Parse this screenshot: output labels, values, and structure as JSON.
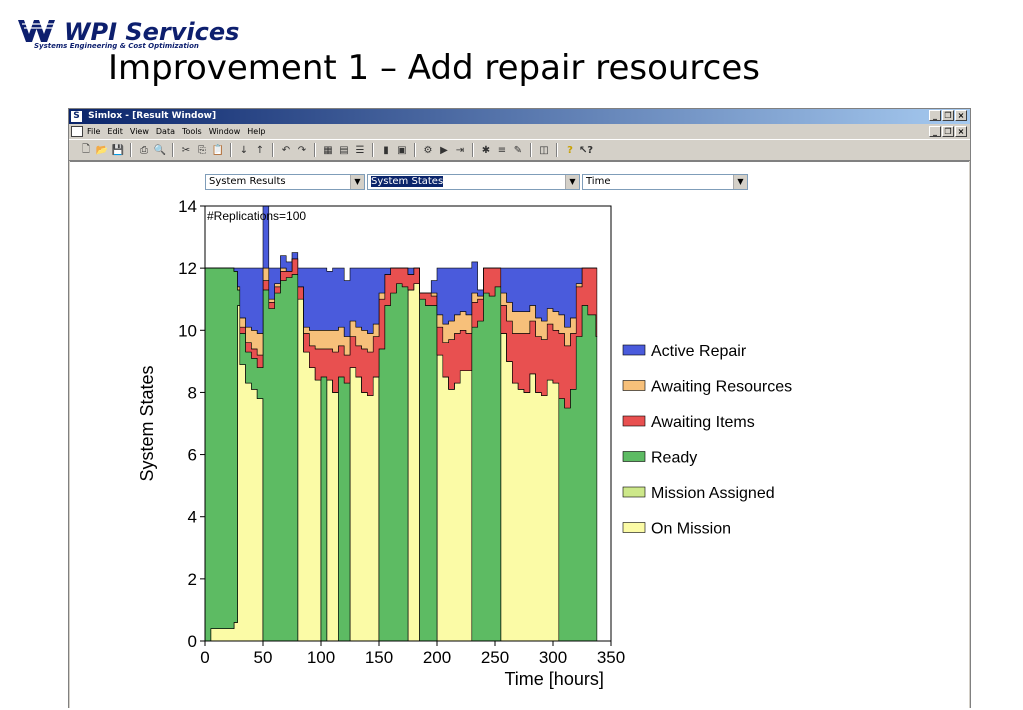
{
  "logo": {
    "name": "WPI Services",
    "tagline": "Systems Engineering & Cost Optimization"
  },
  "slide": {
    "title": "Improvement 1 – Add repair resources"
  },
  "window": {
    "title": "Simlox - [Result Window]",
    "controls": [
      "_",
      "Ő",
      "x"
    ]
  },
  "menu": {
    "items": [
      "File",
      "Edit",
      "View",
      "Data",
      "Tools",
      "Window",
      "Help"
    ]
  },
  "toolbar": {
    "icons": [
      "new-file-icon",
      "open-folder-icon",
      "save-icon",
      "print-icon",
      "print-preview-icon",
      "cut-icon",
      "copy-icon",
      "paste-icon",
      "sort-ascending-icon",
      "sort-descending-icon",
      "undo-icon",
      "redo-icon",
      "table-icon",
      "chart-icon",
      "grid-icon",
      "bar-icon",
      "report-icon",
      "simulate-icon",
      "run-icon",
      "step-icon",
      "settings-icon",
      "list-icon",
      "tool-icon",
      "window-icon",
      "help-icon",
      "context-help-icon"
    ]
  },
  "selectors": {
    "results": {
      "value": "System Results"
    },
    "states": {
      "value": "System States"
    },
    "axis": {
      "value": "Time"
    }
  },
  "colors": {
    "active_repair": "#4a5bdc",
    "awaiting_resources": "#f7c07a",
    "awaiting_items": "#e85050",
    "ready": "#5dbb63",
    "mission_assigned": "#cde88a",
    "on_mission": "#fbfba6"
  },
  "chart_data": {
    "type": "area",
    "annotation": "#Replications=100",
    "xlabel": "Time [hours]",
    "ylabel": "System States",
    "xlim": [
      0,
      350
    ],
    "ylim": [
      0,
      14
    ],
    "xticks": [
      0,
      50,
      100,
      150,
      200,
      250,
      300,
      350
    ],
    "yticks": [
      0,
      2,
      4,
      6,
      8,
      10,
      12,
      14
    ],
    "legend_position": "right",
    "legend": [
      "Active Repair",
      "Awaiting Resources",
      "Awaiting Items",
      "Ready",
      "Mission Assigned",
      "On Mission"
    ],
    "x": [
      0,
      5,
      10,
      15,
      20,
      25,
      28,
      30,
      35,
      40,
      45,
      50,
      55,
      60,
      65,
      70,
      75,
      80,
      85,
      90,
      95,
      100,
      105,
      110,
      115,
      120,
      125,
      130,
      135,
      140,
      145,
      150,
      155,
      160,
      165,
      170,
      175,
      180,
      185,
      190,
      195,
      200,
      205,
      210,
      215,
      220,
      225,
      230,
      235,
      240,
      245,
      250,
      255,
      260,
      265,
      270,
      275,
      280,
      285,
      290,
      295,
      300,
      305,
      310,
      315,
      320,
      325,
      330,
      337
    ],
    "series": [
      {
        "name": "Active Repair",
        "values": [
          0,
          0,
          0,
          0,
          0,
          0.1,
          0.6,
          1.6,
          1.9,
          2.0,
          2.1,
          2.0,
          1.0,
          0.5,
          0.4,
          0.3,
          0.2,
          0.6,
          1.9,
          2.0,
          2.0,
          2.0,
          1.9,
          2.0,
          1.9,
          1.8,
          1.7,
          1.9,
          2.0,
          2.1,
          1.8,
          0.8,
          0.2,
          0,
          0,
          0,
          0.2,
          0,
          0,
          0,
          0.4,
          1.5,
          1.8,
          1.7,
          1.5,
          1.4,
          1.5,
          1.0,
          0.2,
          0,
          0,
          0,
          0.8,
          1.1,
          1.4,
          1.4,
          1.4,
          1.2,
          1.6,
          1.7,
          1.3,
          1.4,
          1.5,
          1.9,
          1.6,
          0.5,
          0,
          0,
          0
        ]
      },
      {
        "name": "Awaiting Resources",
        "values": [
          0,
          0,
          0,
          0,
          0,
          0,
          0.1,
          0.3,
          0.5,
          0.6,
          0.7,
          0.4,
          0.1,
          0.1,
          0.1,
          0,
          0,
          0,
          0.2,
          0.5,
          0.6,
          0.6,
          0.6,
          0.7,
          0.6,
          0.6,
          0.5,
          0.6,
          0.6,
          0.6,
          0.4,
          0.2,
          0,
          0,
          0,
          0,
          0,
          0,
          0,
          0,
          0.1,
          0.4,
          0.6,
          0.6,
          0.6,
          0.6,
          0.6,
          0.3,
          0.1,
          0,
          0,
          0,
          0.4,
          0.6,
          0.7,
          0.7,
          0.7,
          0.5,
          0.6,
          0.6,
          0.5,
          0.6,
          0.6,
          0.6,
          0.5,
          0.1,
          0,
          0,
          0
        ]
      },
      {
        "name": "Awaiting Items",
        "values": [
          0,
          0,
          0,
          0,
          0,
          0,
          0,
          0.2,
          0.3,
          0.3,
          0.4,
          0.3,
          0.2,
          0.2,
          0.3,
          0.2,
          0.5,
          0.4,
          0.6,
          0.7,
          1.0,
          0.9,
          1.0,
          1.3,
          1.0,
          0.9,
          1.0,
          1.0,
          1.4,
          1.4,
          1.3,
          1.6,
          1.0,
          0.8,
          0.5,
          0.6,
          0.5,
          0.5,
          0.2,
          0.4,
          0.3,
          0.9,
          1.1,
          1.6,
          1.6,
          1.3,
          1.2,
          0.8,
          0.7,
          0.8,
          0.9,
          0.6,
          0.9,
          1.3,
          1.6,
          1.8,
          1.9,
          1.7,
          1.8,
          1.8,
          1.8,
          1.7,
          2.1,
          2.0,
          1.8,
          1.6,
          1.2,
          1.5,
          2.2
        ]
      },
      {
        "name": "Ready",
        "values": [
          12,
          11.6,
          11.6,
          11.6,
          11.6,
          11.3,
          0.5,
          1.0,
          1.0,
          1.0,
          1.0,
          11.3,
          10.7,
          11.2,
          11.6,
          11.7,
          11.8,
          0,
          0,
          0,
          0,
          8.5,
          0,
          0,
          8.5,
          8.3,
          0,
          0,
          0,
          0,
          0,
          9.4,
          10.8,
          11.2,
          11.5,
          11.4,
          0,
          0,
          11.0,
          10.8,
          10.8,
          0,
          0,
          0,
          0,
          0,
          0,
          10.1,
          10.3,
          11.2,
          11.1,
          11.4,
          0,
          0,
          0,
          0,
          0,
          0,
          0,
          0,
          0,
          0,
          7.8,
          7.5,
          8.1,
          9.8,
          10.8,
          10.5,
          9.8
        ]
      },
      {
        "name": "Mission Assigned",
        "values": [
          0,
          0,
          0,
          0,
          0,
          0,
          0,
          0,
          0,
          0,
          0,
          0,
          0,
          0,
          0,
          0,
          0,
          0,
          0,
          0,
          0,
          0,
          0,
          0,
          0,
          0,
          0,
          0,
          0,
          0,
          0,
          0,
          0,
          0,
          0,
          0,
          0,
          0,
          0,
          0,
          0,
          0,
          0,
          0,
          0,
          0,
          0,
          0,
          0,
          0,
          0,
          0,
          0,
          0,
          0,
          0,
          0,
          0,
          0,
          0,
          0,
          0,
          0,
          0,
          0,
          0,
          0,
          0,
          0
        ]
      },
      {
        "name": "On Mission",
        "values": [
          0,
          0.4,
          0.4,
          0.4,
          0.4,
          0.6,
          10.8,
          8.9,
          8.3,
          8.1,
          7.8,
          0,
          0,
          0,
          0,
          0,
          0,
          11.0,
          9.3,
          8.8,
          8.4,
          0,
          8.4,
          8.0,
          0,
          0,
          8.8,
          8.5,
          8.0,
          7.9,
          8.5,
          0,
          0,
          0,
          0,
          0,
          11.3,
          11.5,
          0,
          0,
          0,
          9.2,
          8.5,
          8.1,
          8.3,
          8.7,
          8.7,
          0,
          0,
          0,
          0,
          0,
          9.9,
          9.0,
          8.3,
          8.1,
          8.0,
          8.6,
          8.0,
          7.9,
          8.4,
          8.3,
          0,
          0,
          0,
          0,
          0,
          0,
          0
        ]
      }
    ]
  }
}
